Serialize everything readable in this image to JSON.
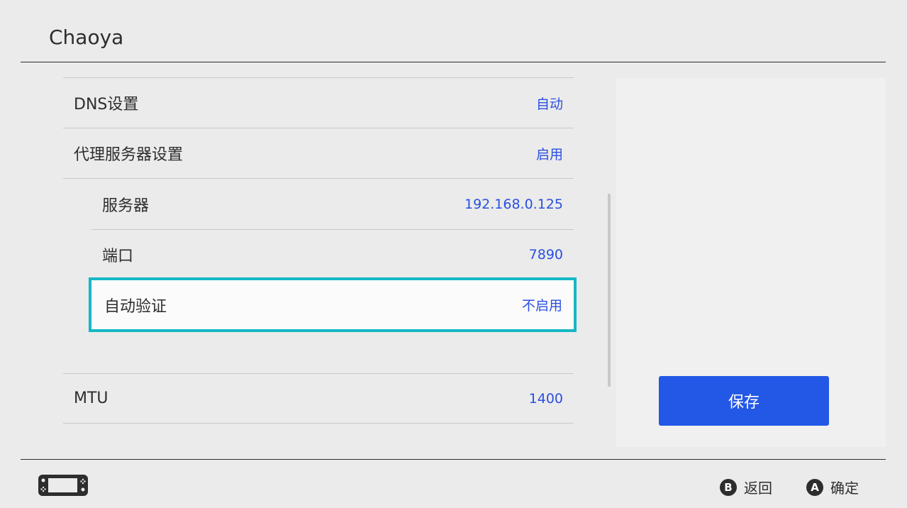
{
  "header": {
    "title": "Chaoya"
  },
  "rows": [
    {
      "label": "DNS设置",
      "value": "自动"
    },
    {
      "label": "代理服务器设置",
      "value": "启用"
    },
    {
      "label": "服务器",
      "value": "192.168.0.125"
    },
    {
      "label": "端口",
      "value": "7890"
    },
    {
      "label": "自动验证",
      "value": "不启用"
    },
    {
      "label": "MTU",
      "value": "1400"
    }
  ],
  "save_label": "保存",
  "footer": {
    "back_key": "B",
    "back_label": "返回",
    "ok_key": "A",
    "ok_label": "确定"
  },
  "colors": {
    "accent": "#2358e6",
    "focus": "#14b8c4",
    "value": "#2a50e0"
  }
}
